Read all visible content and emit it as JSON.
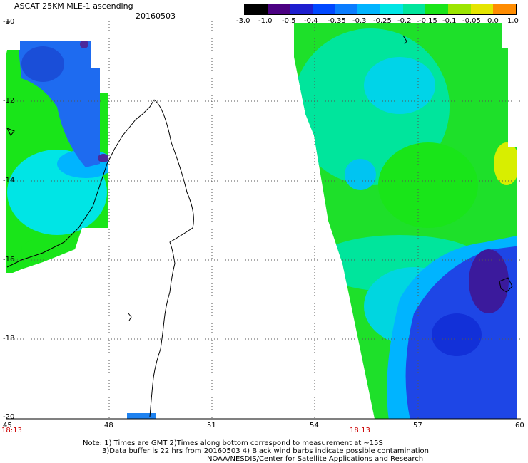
{
  "title": "ASCAT 25KM MLE-1 ascending",
  "date": "20160503",
  "colorbar": {
    "labels": [
      "-3.0",
      "-1.0",
      "-0.5",
      "-0.4",
      "-0.35",
      "-0.3",
      "-0.25",
      "-0.2",
      "-0.15",
      "-0.1",
      "-0.05",
      "0.0",
      "1.0"
    ],
    "colors": [
      "#000000",
      "#4b0082",
      "#1e1ecf",
      "#0047ff",
      "#0a7cff",
      "#00b4ff",
      "#00e5e5",
      "#00e59c",
      "#19e519",
      "#9ce500",
      "#e5e500",
      "#ff8c00",
      "#ff1e00"
    ]
  },
  "axes": {
    "y_ticks": [
      "-10",
      "-12",
      "-14",
      "-16",
      "-18",
      "-20"
    ],
    "x_ticks": [
      "45",
      "48",
      "51",
      "54",
      "57",
      "60"
    ],
    "time_labels": [
      "18:13",
      "18:13"
    ]
  },
  "notes": {
    "line1": "Note: 1) Times are GMT 2)Times along bottom correspond to measurement at ~15S",
    "line2": "3)Data buffer is 22 hrs from 20160503 4) Black wind barbs indicate possible contamination",
    "line3": "NOAA/NESDIS/Center for Satellite Applications and Research"
  }
}
